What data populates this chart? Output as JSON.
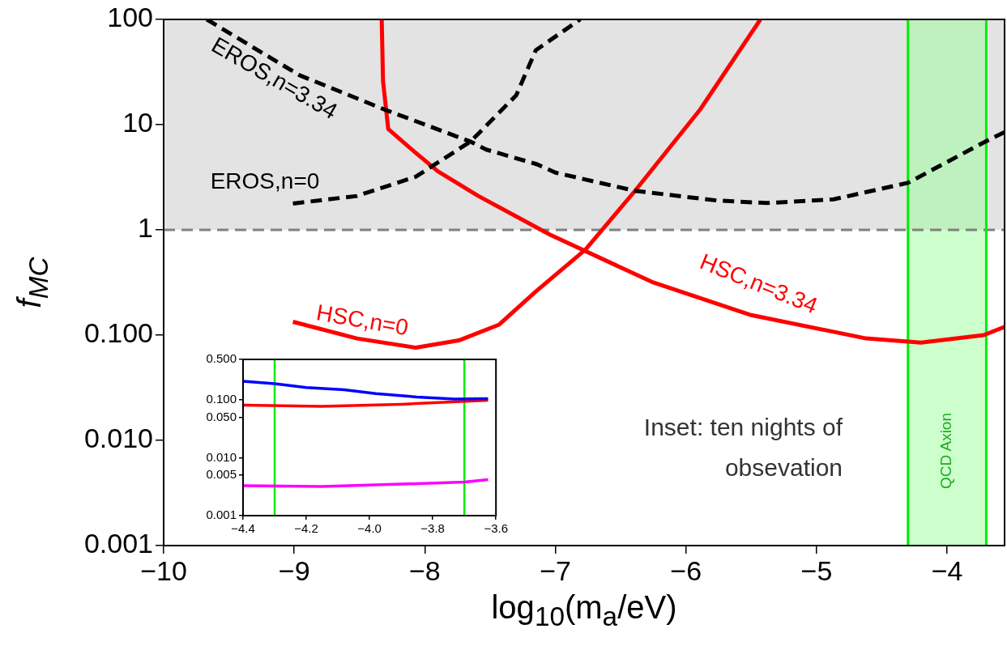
{
  "chart_data": [
    {
      "type": "line",
      "xlabel": "log$_{10}$(m$_{a}$/eV)",
      "ylabel": "f$_{MC}$",
      "xlim": [
        -10,
        -3.56
      ],
      "xticks": [
        {
          "value": -10,
          "label": "−10"
        },
        {
          "value": -9,
          "label": "−9"
        },
        {
          "value": -8,
          "label": "−8"
        },
        {
          "value": -7,
          "label": "−7"
        },
        {
          "value": -6,
          "label": "−6"
        },
        {
          "value": -5,
          "label": "−5"
        },
        {
          "value": -4,
          "label": "−4"
        }
      ],
      "ylim": [
        0.001,
        100
      ],
      "yticks": [
        0.001,
        {
          "value": 0.01,
          "label": "0.010"
        },
        {
          "value": 0.1,
          "label": "0.100"
        },
        1,
        10,
        100
      ],
      "log": "y",
      "grid": false,
      "legend": false,
      "marker": "none",
      "series": [
        {
          "name": "EROS,n=3.34",
          "color": "#000000",
          "line_style": "dashed",
          "x": [
            -9.67,
            -8.96,
            -8.3,
            -7.65,
            -7.53,
            -7.14,
            -7.0,
            -6.39,
            -5.76,
            -5.38,
            -4.87,
            -4.3,
            -3.67,
            -3.56
          ],
          "values": [
            100,
            29.5,
            13.8,
            6.9,
            5.8,
            4.2,
            3.5,
            2.35,
            1.9,
            1.8,
            1.95,
            2.8,
            7.3,
            8.5
          ]
        },
        {
          "name": "EROS,n=0",
          "color": "#000000",
          "line_style": "dashed",
          "x": [
            -9.01,
            -8.52,
            -8.07,
            -7.65,
            -7.3,
            -7.15,
            -6.81
          ],
          "values": [
            1.78,
            2.1,
            3.2,
            6.9,
            19,
            51,
            100
          ]
        },
        {
          "name": "HSC,n=3.34",
          "color": "#ff0000",
          "line_style": "solid",
          "x": [
            -8.33,
            -8.32,
            -8.28,
            -8.12,
            -7.9,
            -7.59,
            -7.04,
            -6.26,
            -5.5,
            -4.62,
            -4.2,
            -3.72,
            -3.56
          ],
          "values": [
            100,
            26,
            9.1,
            6.1,
            3.6,
            2.1,
            0.9,
            0.32,
            0.155,
            0.093,
            0.085,
            0.1,
            0.12
          ]
        },
        {
          "name": "HSC,n=0",
          "color": "#ff0000",
          "line_style": "solid",
          "x": [
            -9.01,
            -8.52,
            -8.07,
            -7.74,
            -7.43,
            -7.15,
            -6.77,
            -6.39,
            -5.89,
            -5.43
          ],
          "values": [
            0.134,
            0.093,
            0.076,
            0.089,
            0.126,
            0.26,
            0.65,
            2.35,
            14,
            100
          ]
        }
      ],
      "bands": [
        {
          "axis": "y",
          "from": 1,
          "to": 100,
          "color": "#e3e3e3"
        },
        {
          "axis": "x",
          "from": -4.3,
          "to": -3.7,
          "label": "QCD Axion",
          "color": "#99ff99"
        }
      ],
      "ref_lines": [
        {
          "axis": "y",
          "value": 1,
          "color": "#808080",
          "line_style": "dashed"
        },
        {
          "axis": "x",
          "value": -4.3,
          "color": "#00ee00",
          "line_style": "solid"
        },
        {
          "axis": "x",
          "value": -3.7,
          "color": "#00ee00",
          "line_style": "solid"
        }
      ],
      "annotations": [
        "Inset: ten nights of obsevation"
      ]
    },
    {
      "type": "line",
      "xlim": [
        -4.4,
        -3.6
      ],
      "xticks": [
        {
          "value": -4.4,
          "label": "−4.4"
        },
        {
          "value": -4.2,
          "label": "−4.2"
        },
        {
          "value": -4.0,
          "label": "−4.0"
        },
        {
          "value": -3.8,
          "label": "−3.8"
        },
        {
          "value": -3.6,
          "label": "−3.6"
        }
      ],
      "ylim": [
        0.001,
        0.5
      ],
      "yticks": [
        {
          "value": 0.001,
          "label": "0.001"
        },
        {
          "value": 0.005,
          "label": "0.005"
        },
        {
          "value": 0.01,
          "label": "0.010"
        },
        {
          "value": 0.05,
          "label": "0.050"
        },
        {
          "value": 0.1,
          "label": "0.100"
        },
        {
          "value": 0.5,
          "label": "0.500"
        }
      ],
      "log": "y",
      "grid": false,
      "legend": false,
      "marker": "none",
      "series": [
        {
          "color": "#0000ff",
          "x": [
            -4.4,
            -4.3,
            -4.2,
            -4.08,
            -3.98,
            -3.85,
            -3.73,
            -3.625
          ],
          "values": [
            0.21,
            0.19,
            0.163,
            0.15,
            0.128,
            0.112,
            0.103,
            0.105
          ]
        },
        {
          "color": "#ff0000",
          "x": [
            -4.4,
            -4.15,
            -3.9,
            -3.625
          ],
          "values": [
            0.081,
            0.077,
            0.084,
            0.098
          ]
        },
        {
          "color": "#ff00ff",
          "x": [
            -4.4,
            -4.15,
            -3.9,
            -3.7,
            -3.625
          ],
          "values": [
            0.0033,
            0.0032,
            0.0035,
            0.0038,
            0.0042
          ]
        }
      ],
      "ref_lines": [
        {
          "axis": "x",
          "value": -4.3,
          "color": "#00ee00"
        },
        {
          "axis": "x",
          "value": -3.7,
          "color": "#00ee00"
        }
      ]
    }
  ]
}
